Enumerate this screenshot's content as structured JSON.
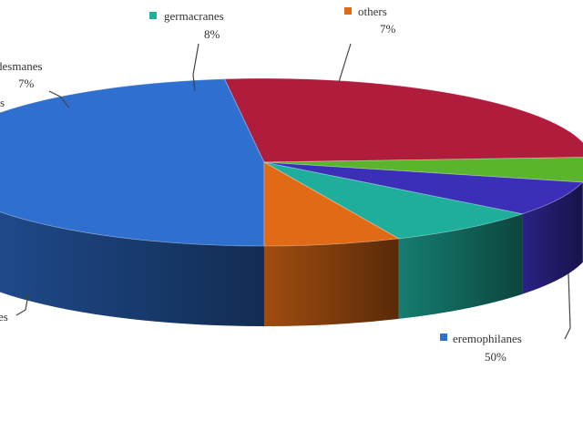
{
  "chart_data": {
    "type": "pie",
    "style": "3d",
    "title": "",
    "slices": [
      {
        "label": "eremophilanes",
        "value": 50,
        "value_label": "50%",
        "color": "#2e6fd0"
      },
      {
        "label": "",
        "value": 27,
        "value_label": "",
        "color": "#b01c3c"
      },
      {
        "label": "",
        "value": 5,
        "value_label": "",
        "color": "#5ab52d"
      },
      {
        "label": "desmanes",
        "value": 7,
        "value_label": "7%",
        "color": "#3b2fb8"
      },
      {
        "label": "germacranes",
        "value": 8,
        "value_label": "8%",
        "color": "#1fae9c"
      },
      {
        "label": "others",
        "value": 7,
        "value_label": "7%",
        "color": "#e06a16"
      }
    ],
    "partial_labels": [
      {
        "text": "s"
      },
      {
        "text": "es"
      }
    ]
  }
}
